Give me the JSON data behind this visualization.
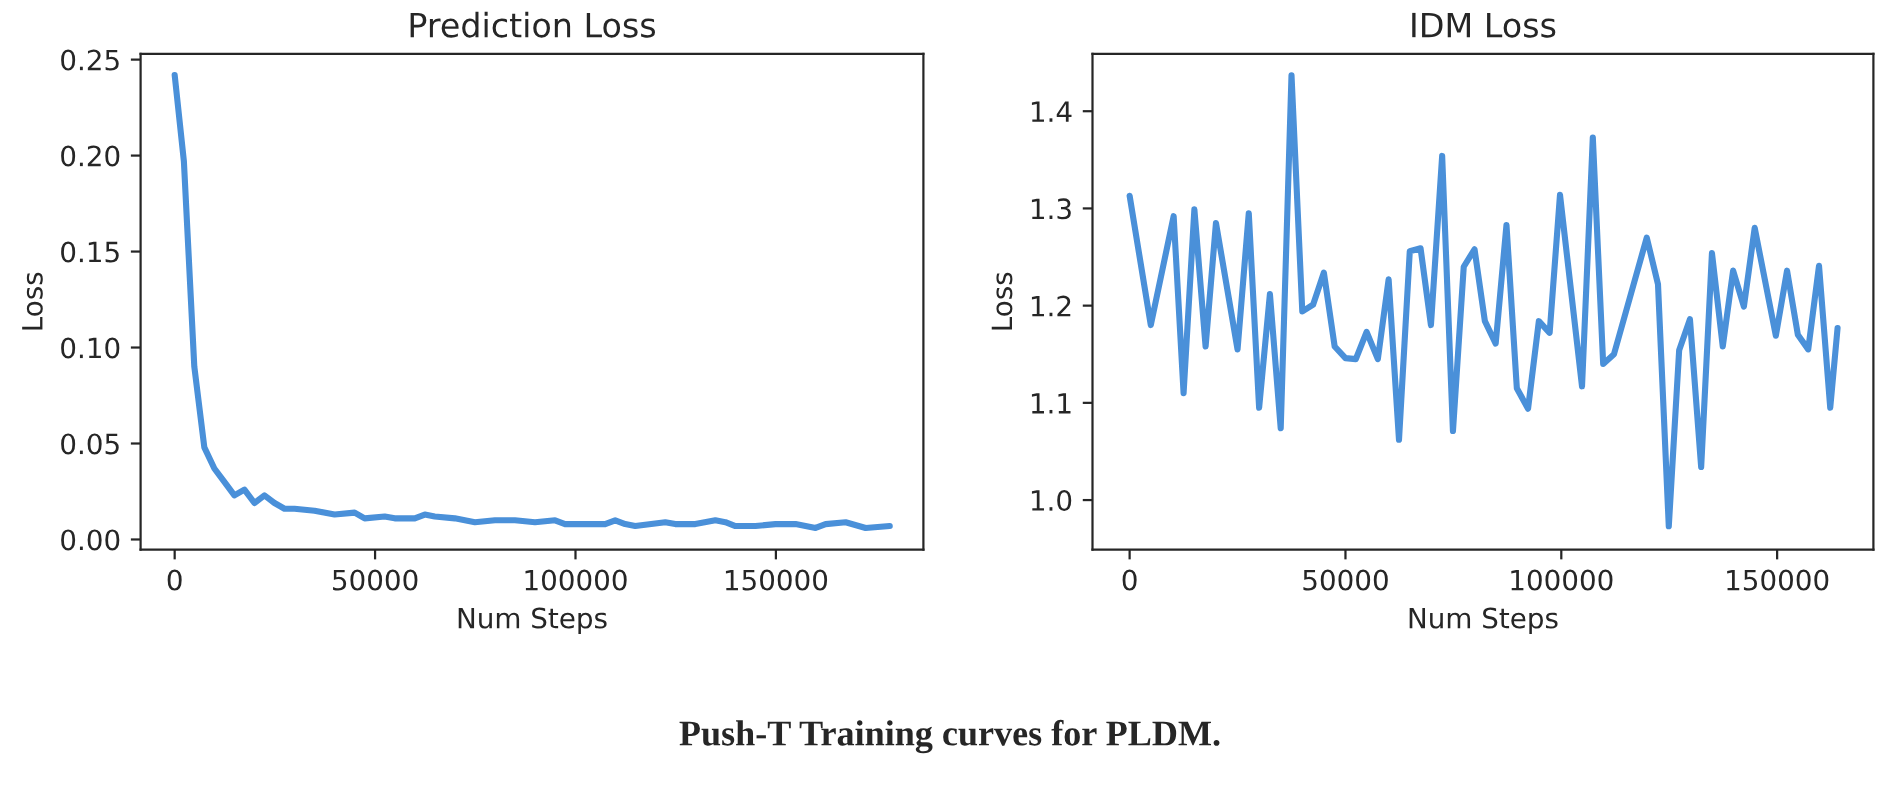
{
  "chart_data": [
    {
      "type": "line",
      "title": "Prediction Loss",
      "xlabel": "Num Steps",
      "ylabel": "Loss",
      "xlim": [
        -8500,
        186800
      ],
      "ylim": [
        -0.0053,
        0.253
      ],
      "xticks": [
        0,
        50000,
        100000,
        150000
      ],
      "yticks": [
        {
          "value": 0,
          "label": "0.00"
        },
        {
          "value": 0.05,
          "label": "0.05"
        },
        {
          "value": 0.1,
          "label": "0.10"
        },
        {
          "value": 0.15,
          "label": "0.15"
        },
        {
          "value": 0.2,
          "label": "0.20"
        },
        {
          "value": 0.25,
          "label": "0.25"
        }
      ],
      "grid": false,
      "legend": false,
      "series": [
        {
          "color": "#4a90d9",
          "x": [
            0,
            2300,
            4900,
            7400,
            9900,
            12400,
            14900,
            17400,
            19900,
            22400,
            24900,
            27400,
            29900,
            34900,
            39900,
            44900,
            47400,
            52400,
            54900,
            59900,
            62400,
            64900,
            69900,
            74900,
            79900,
            84900,
            89900,
            94900,
            97400,
            102400,
            107400,
            109900,
            112400,
            114900,
            122400,
            124900,
            129900,
            134900,
            137400,
            139900,
            144900,
            149900,
            154900,
            159900,
            162400,
            167400,
            172400,
            178400
          ],
          "values": [
            0.242,
            0.197,
            0.09,
            0.048,
            0.037,
            0.03,
            0.023,
            0.026,
            0.019,
            0.023,
            0.019,
            0.016,
            0.016,
            0.015,
            0.013,
            0.014,
            0.011,
            0.012,
            0.011,
            0.011,
            0.013,
            0.012,
            0.011,
            0.009,
            0.01,
            0.01,
            0.009,
            0.01,
            0.008,
            0.008,
            0.008,
            0.01,
            0.008,
            0.007,
            0.009,
            0.008,
            0.008,
            0.01,
            0.009,
            0.007,
            0.007,
            0.008,
            0.008,
            0.006,
            0.008,
            0.009,
            0.006,
            0.007
          ]
        }
      ]
    },
    {
      "type": "line",
      "title": "IDM Loss",
      "xlabel": "Num Steps",
      "ylabel": "Loss",
      "xlim": [
        -8600,
        172300
      ],
      "ylim": [
        0.949,
        1.459
      ],
      "xticks": [
        0,
        50000,
        100000,
        150000
      ],
      "yticks": [
        {
          "value": 1.0,
          "label": "1.0"
        },
        {
          "value": 1.1,
          "label": "1.1"
        },
        {
          "value": 1.2,
          "label": "1.2"
        },
        {
          "value": 1.3,
          "label": "1.3"
        },
        {
          "value": 1.4,
          "label": "1.4"
        }
      ],
      "grid": false,
      "legend": false,
      "annotations": [
        "Push-T Training curves for PLDM."
      ],
      "series": [
        {
          "color": "#4a90d9",
          "x": [
            0,
            4900,
            10200,
            12500,
            15000,
            17600,
            20000,
            25000,
            27600,
            30000,
            32500,
            35000,
            37500,
            40000,
            42500,
            45000,
            47500,
            50000,
            52400,
            54900,
            57500,
            60000,
            62400,
            64900,
            67400,
            69800,
            72400,
            74900,
            77400,
            79900,
            82300,
            84800,
            87300,
            89700,
            92300,
            94800,
            97300,
            99700,
            104800,
            107300,
            109700,
            112200,
            119800,
            122400,
            124900,
            127300,
            129800,
            132400,
            134900,
            137400,
            139800,
            142300,
            144800,
            149700,
            152300,
            154800,
            157200,
            159700,
            162300,
            164000
          ],
          "values": [
            1.313,
            1.18,
            1.292,
            1.11,
            1.299,
            1.158,
            1.285,
            1.155,
            1.295,
            1.095,
            1.212,
            1.074,
            1.437,
            1.194,
            1.201,
            1.234,
            1.158,
            1.146,
            1.145,
            1.173,
            1.145,
            1.227,
            1.062,
            1.256,
            1.259,
            1.18,
            1.354,
            1.071,
            1.24,
            1.258,
            1.184,
            1.161,
            1.283,
            1.115,
            1.094,
            1.184,
            1.172,
            1.314,
            1.117,
            1.373,
            1.14,
            1.15,
            1.27,
            1.222,
            0.973,
            1.154,
            1.186,
            1.034,
            1.254,
            1.158,
            1.236,
            1.199,
            1.28,
            1.169,
            1.236,
            1.17,
            1.155,
            1.241,
            1.095,
            1.177
          ]
        }
      ]
    }
  ]
}
